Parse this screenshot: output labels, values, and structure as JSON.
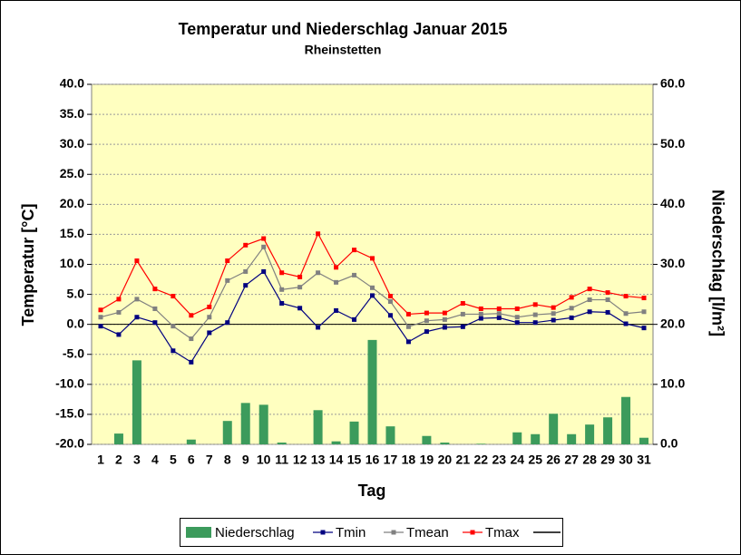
{
  "chart_data": {
    "type": "bar-line",
    "title": "Temperatur und Niederschlag Januar 2015",
    "subtitle": "Rheinstetten",
    "xlabel": "Tag",
    "ylabel": "Temperatur [°C]",
    "y2label": "Niederschlag [l/m²]",
    "categories": [
      "1",
      "2",
      "3",
      "4",
      "5",
      "6",
      "7",
      "8",
      "9",
      "10",
      "11",
      "12",
      "13",
      "14",
      "15",
      "16",
      "17",
      "18",
      "19",
      "20",
      "21",
      "22",
      "23",
      "24",
      "25",
      "26",
      "27",
      "28",
      "29",
      "30",
      "31"
    ],
    "ylim": [
      -20,
      40
    ],
    "yticks": [
      {
        "value": -20,
        "label": "-20.0"
      },
      {
        "value": -15,
        "label": "-15.0"
      },
      {
        "value": -10,
        "label": "-10.0"
      },
      {
        "value": -5,
        "label": "-5.0"
      },
      {
        "value": 0,
        "label": "0.0"
      },
      {
        "value": 5,
        "label": "5.0"
      },
      {
        "value": 10,
        "label": "10.0"
      },
      {
        "value": 15,
        "label": "15.0"
      },
      {
        "value": 20,
        "label": "20.0"
      },
      {
        "value": 25,
        "label": "25.0"
      },
      {
        "value": 30,
        "label": "30.0"
      },
      {
        "value": 35,
        "label": "35.0"
      },
      {
        "value": 40,
        "label": "40.0"
      }
    ],
    "y2lim": [
      0,
      60
    ],
    "y2ticks": [
      {
        "value": 0,
        "label": "0.0"
      },
      {
        "value": 10,
        "label": "10.0"
      },
      {
        "value": 20,
        "label": "20.0"
      },
      {
        "value": 30,
        "label": "30.0"
      },
      {
        "value": 40,
        "label": "40.0"
      },
      {
        "value": 50,
        "label": "50.0"
      },
      {
        "value": 60,
        "label": "60.0"
      }
    ],
    "grid": true,
    "series": [
      {
        "name": "Niederschlag",
        "type": "bar",
        "axis": "y2",
        "color": "#3c9b5c",
        "values": [
          0,
          1.8,
          14.0,
          0,
          0,
          0.8,
          0,
          3.9,
          6.9,
          6.6,
          0.3,
          0,
          5.7,
          0.5,
          3.8,
          17.4,
          3.0,
          0,
          1.4,
          0.3,
          0,
          0.1,
          0,
          2.0,
          1.7,
          5.1,
          1.7,
          3.3,
          4.5,
          7.9,
          1.1
        ]
      },
      {
        "name": "Tmin",
        "type": "line",
        "color": "#000080",
        "values": [
          -0.3,
          -1.7,
          1.2,
          0.3,
          -4.4,
          -6.3,
          -1.4,
          0.3,
          6.5,
          8.8,
          3.5,
          2.7,
          -0.5,
          2.3,
          0.8,
          4.8,
          1.5,
          -2.9,
          -1.2,
          -0.5,
          -0.4,
          1.0,
          1.1,
          0.3,
          0.3,
          0.7,
          1.1,
          2.1,
          2.0,
          0.1,
          -0.6
        ]
      },
      {
        "name": "Tmean",
        "type": "line",
        "color": "#808080",
        "values": [
          1.2,
          2.0,
          4.2,
          2.6,
          -0.3,
          -2.4,
          1.2,
          7.3,
          8.8,
          12.9,
          5.8,
          6.2,
          8.6,
          7.0,
          8.2,
          6.1,
          3.8,
          -0.4,
          0.6,
          0.8,
          1.7,
          1.7,
          1.8,
          1.2,
          1.6,
          1.8,
          2.7,
          4.1,
          4.1,
          1.8,
          2.1
        ]
      },
      {
        "name": "Tmax",
        "type": "line",
        "color": "#ff0000",
        "values": [
          2.4,
          4.2,
          10.6,
          5.9,
          4.7,
          1.5,
          2.9,
          10.6,
          13.2,
          14.3,
          8.6,
          7.9,
          15.1,
          9.5,
          12.4,
          11.0,
          4.7,
          1.7,
          1.9,
          1.9,
          3.5,
          2.6,
          2.6,
          2.6,
          3.3,
          2.8,
          4.5,
          5.9,
          5.3,
          4.7,
          4.4
        ]
      }
    ]
  }
}
